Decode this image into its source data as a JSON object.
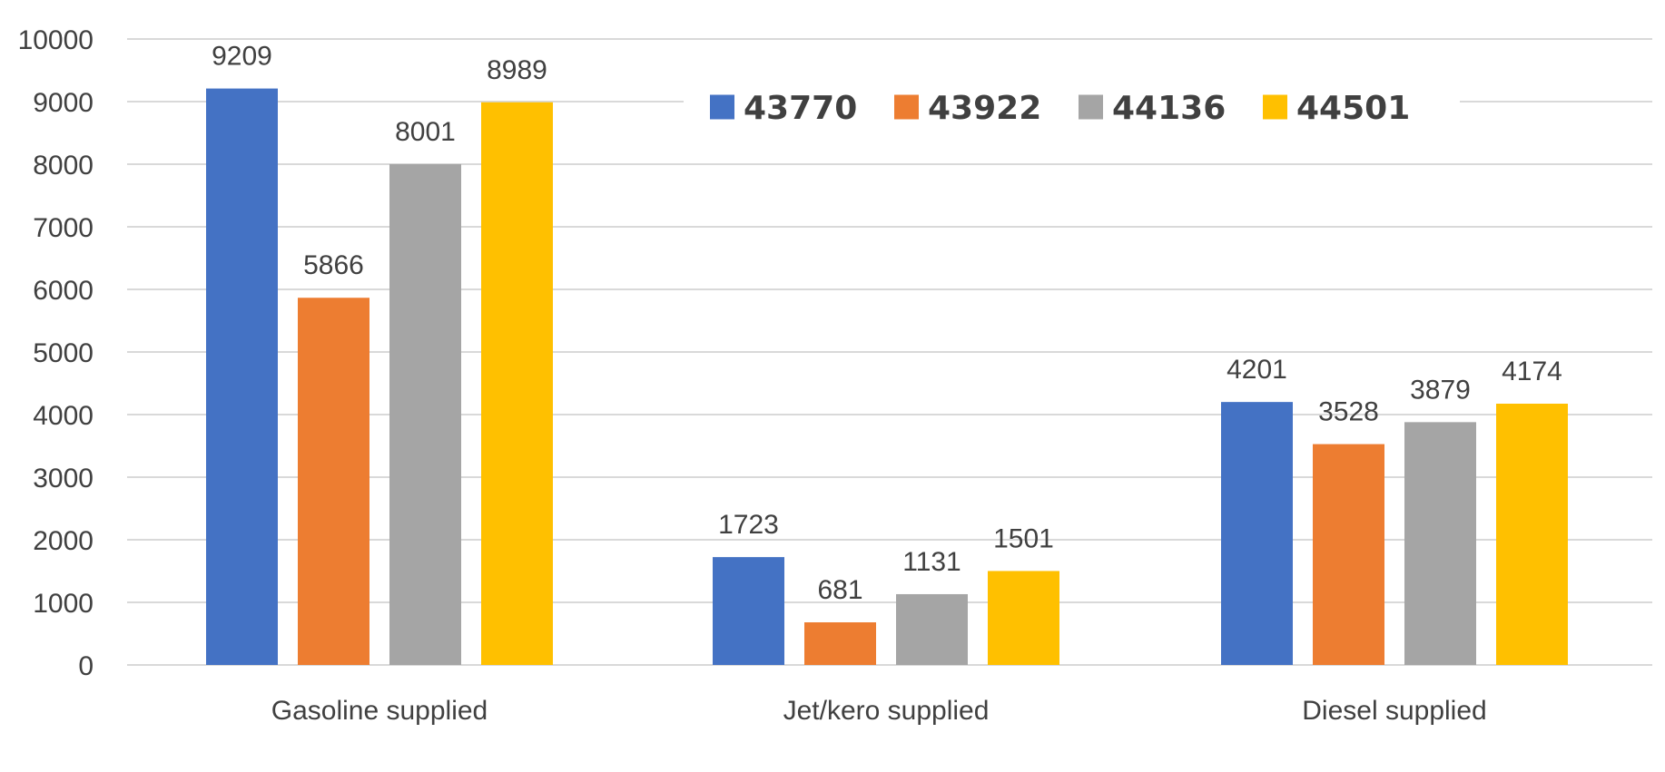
{
  "chart_data": {
    "type": "bar",
    "title": "",
    "xlabel": "",
    "ylabel": "",
    "categories": [
      "Gasoline supplied",
      "Jet/kero supplied",
      "Diesel supplied"
    ],
    "series": [
      {
        "name": "43770",
        "color": "#4472C4",
        "values": [
          9209,
          1723,
          4201
        ]
      },
      {
        "name": "43922",
        "color": "#ED7D31",
        "values": [
          5866,
          681,
          3528
        ]
      },
      {
        "name": "44136",
        "color": "#A5A5A5",
        "values": [
          8001,
          1131,
          3879
        ]
      },
      {
        "name": "44501",
        "color": "#FFC000",
        "values": [
          8989,
          1501,
          4174
        ]
      }
    ],
    "ylim": [
      0,
      10000
    ],
    "yticks": [
      "0",
      "1000",
      "2000",
      "3000",
      "4000",
      "5000",
      "6000",
      "7000",
      "8000",
      "9000",
      "10000"
    ],
    "grid": true,
    "legend_position": "top-center",
    "data_labels": true,
    "gridline_color": "#D9D9D9"
  }
}
